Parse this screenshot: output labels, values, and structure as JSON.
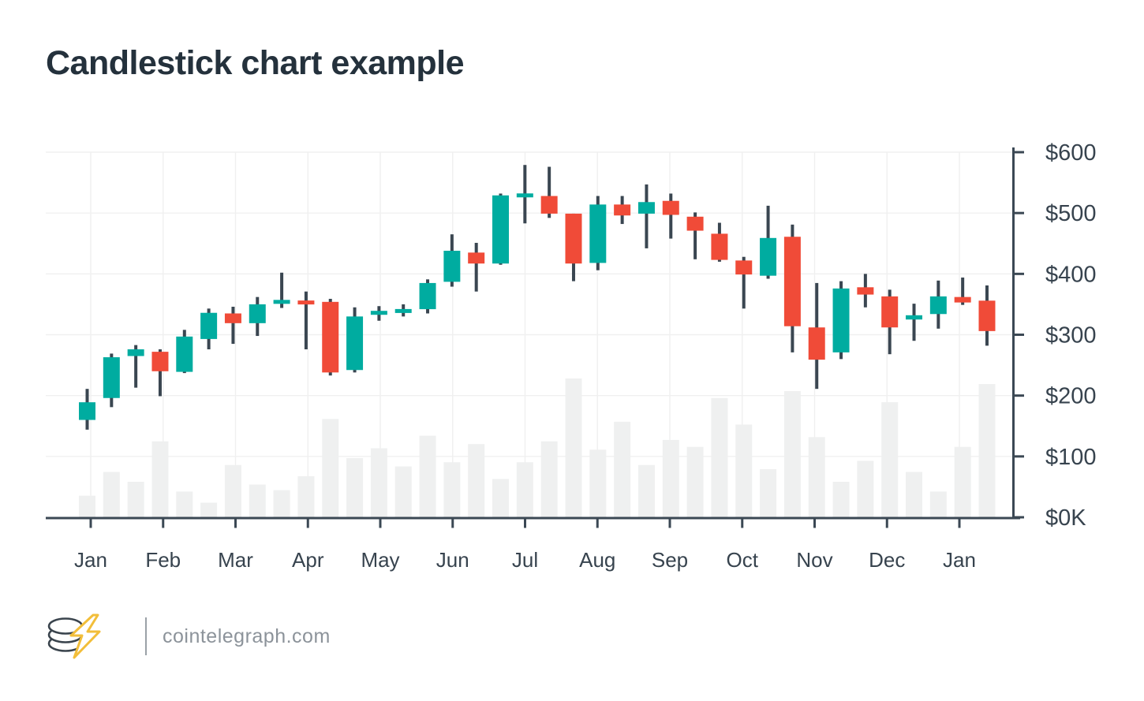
{
  "title": "Candlestick chart example",
  "chart_data": {
    "type": "candlestick",
    "title": "Candlestick chart example",
    "x_tick_labels": [
      "Jan",
      "Feb",
      "Mar",
      "Apr",
      "May",
      "Jun",
      "Jul",
      "Aug",
      "Sep",
      "Oct",
      "Nov",
      "Dec",
      "Jan"
    ],
    "y_tick_labels_top_to_bottom": [
      "$600",
      "$500",
      "$400",
      "$300",
      "$200",
      "$100",
      "$0K"
    ],
    "ylim": [
      0,
      600
    ],
    "y_step": 100,
    "grid": true,
    "legend_position": "none",
    "periods_per_month": 3,
    "candles_ohlc": [
      [
        160,
        211,
        144,
        189
      ],
      [
        196,
        269,
        181,
        263
      ],
      [
        265,
        283,
        213,
        276
      ],
      [
        272,
        276,
        199,
        240
      ],
      [
        239,
        308,
        237,
        297
      ],
      [
        293,
        343,
        276,
        336
      ],
      [
        335,
        346,
        285,
        319
      ],
      [
        319,
        362,
        298,
        350
      ],
      [
        353,
        402,
        344,
        355
      ],
      [
        356,
        371,
        276,
        350
      ],
      [
        354,
        359,
        233,
        238
      ],
      [
        242,
        345,
        238,
        330
      ],
      [
        335,
        347,
        323,
        337
      ],
      [
        338,
        350,
        330,
        340
      ],
      [
        342,
        391,
        335,
        385
      ],
      [
        387,
        465,
        379,
        438
      ],
      [
        435,
        451,
        371,
        417
      ],
      [
        417,
        532,
        415,
        529
      ],
      [
        528,
        579,
        483,
        530
      ],
      [
        528,
        576,
        492,
        499
      ],
      [
        499,
        499,
        388,
        417
      ],
      [
        418,
        528,
        406,
        514
      ],
      [
        514,
        528,
        482,
        496
      ],
      [
        499,
        547,
        442,
        518
      ],
      [
        520,
        532,
        458,
        497
      ],
      [
        494,
        501,
        424,
        471
      ],
      [
        466,
        484,
        420,
        423
      ],
      [
        422,
        428,
        343,
        399
      ],
      [
        397,
        512,
        392,
        459
      ],
      [
        461,
        481,
        271,
        314
      ],
      [
        312,
        385,
        211,
        259
      ],
      [
        271,
        388,
        260,
        376
      ],
      [
        378,
        400,
        345,
        366
      ],
      [
        363,
        374,
        268,
        312
      ],
      [
        325,
        351,
        290,
        332
      ],
      [
        334,
        389,
        310,
        363
      ],
      [
        362,
        394,
        349,
        353
      ],
      [
        356,
        381,
        282,
        306
      ]
    ],
    "volume_percent_of_max": [
      16,
      33,
      26,
      55,
      19,
      11,
      38,
      24,
      20,
      30,
      71,
      43,
      50,
      37,
      59,
      40,
      53,
      28,
      40,
      55,
      100,
      49,
      69,
      38,
      56,
      51,
      86,
      67,
      35,
      91,
      58,
      26,
      41,
      83,
      33,
      19,
      51,
      96
    ]
  },
  "footer": {
    "brand_text": "cointelegraph.com",
    "logo": "coin-stack-with-lightning-bolt"
  },
  "colors": {
    "bull": "#00ACA0",
    "bear": "#F04B38",
    "wick": "#3A4651",
    "axis": "#3B4854",
    "grid": "#F0F0F0",
    "volume": "#EFF0F0",
    "tick_label": "#37434E",
    "title": "#24313C",
    "footer_text": "#8C939A",
    "logo_dark": "#3A444D",
    "logo_yellow": "#F2BE3A",
    "background": "#FFFFFF"
  }
}
